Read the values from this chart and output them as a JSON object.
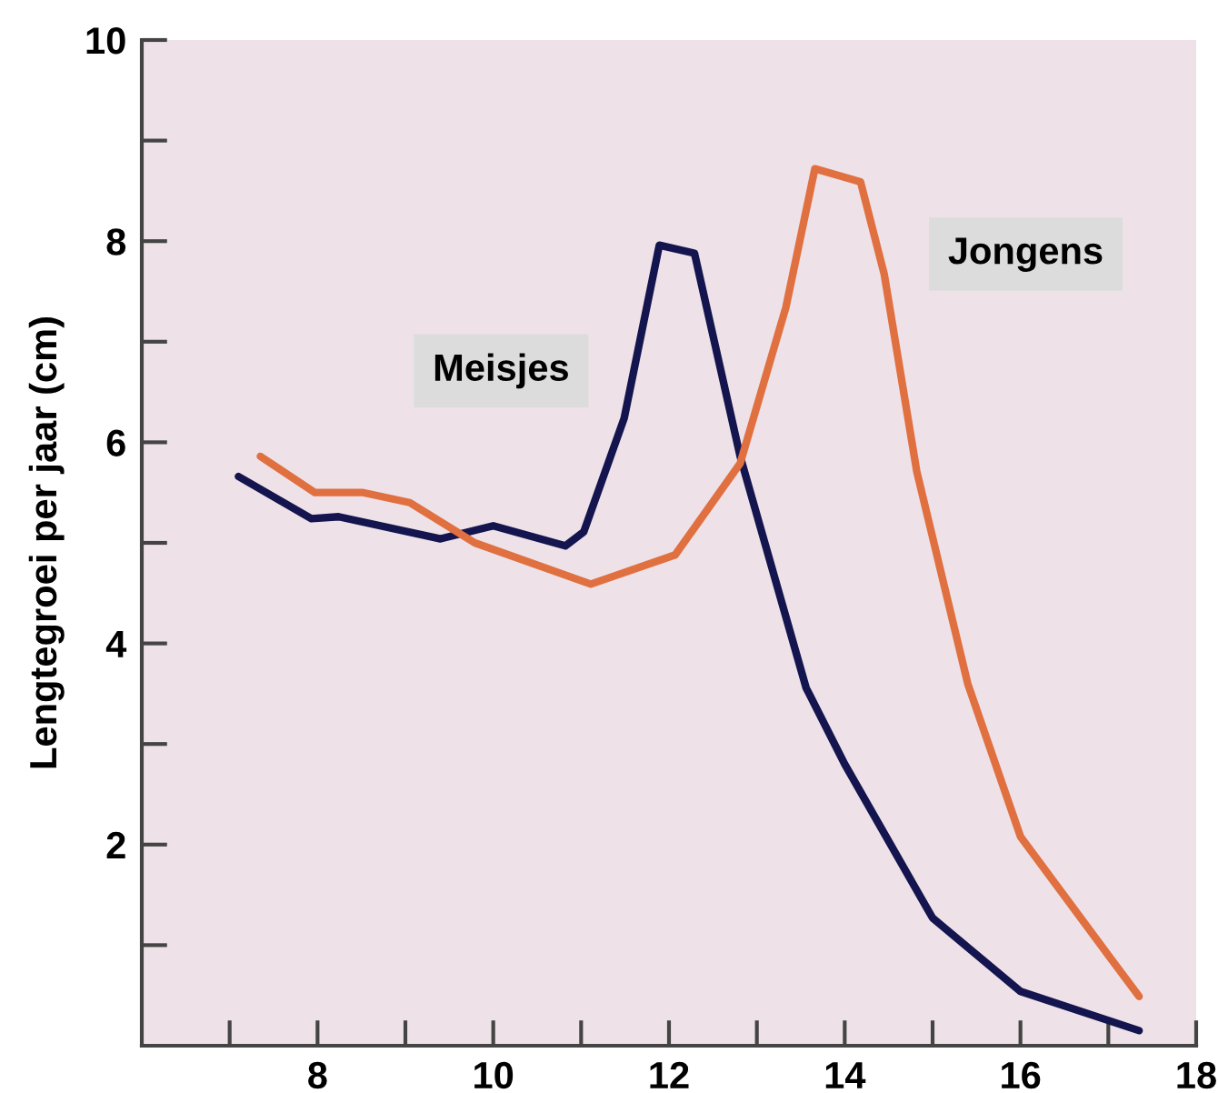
{
  "chart_data": {
    "type": "line",
    "ylabel": "Lengtegroei per jaar (cm)",
    "xlim": [
      6,
      18
    ],
    "ylim": [
      0,
      10
    ],
    "xticks": [
      {
        "value": 7,
        "label": null
      },
      8,
      {
        "value": 9,
        "label": null
      },
      10,
      {
        "value": 11,
        "label": null
      },
      12,
      {
        "value": 13,
        "label": null
      },
      14,
      {
        "value": 15,
        "label": null
      },
      16,
      {
        "value": 17,
        "label": null
      },
      18
    ],
    "yticks": [
      {
        "value": 1,
        "label": null
      },
      2,
      {
        "value": 3,
        "label": null
      },
      4,
      {
        "value": 5,
        "label": null
      },
      6,
      {
        "value": 7,
        "label": null
      },
      8,
      {
        "value": 9,
        "label": null
      },
      10
    ],
    "grid": false,
    "legend": false,
    "marker": "none",
    "line_style": "solid",
    "series": [
      {
        "name": "Meisjes",
        "color": "#14144f",
        "x": [
          7.1,
          7.93,
          8.24,
          9.4,
          10.0,
          10.82,
          11.03,
          11.49,
          11.89,
          12.29,
          12.81,
          13.56,
          14.0,
          15.0,
          16.0,
          17.35
        ],
        "values": [
          5.66,
          5.24,
          5.26,
          5.04,
          5.17,
          4.97,
          5.11,
          6.24,
          7.96,
          7.88,
          5.86,
          3.56,
          2.8,
          1.27,
          0.54,
          0.15
        ]
      },
      {
        "name": "Jongens",
        "color": "#e07040",
        "x": [
          7.35,
          7.97,
          8.52,
          9.05,
          9.79,
          11.11,
          12.07,
          12.81,
          13.33,
          13.66,
          14.18,
          14.45,
          14.82,
          15.4,
          16.0,
          17.0,
          17.35
        ],
        "values": [
          5.86,
          5.5,
          5.5,
          5.4,
          5.0,
          4.59,
          4.88,
          5.79,
          7.34,
          8.72,
          8.59,
          7.67,
          5.71,
          3.6,
          2.08,
          0.9,
          0.49
        ]
      }
    ]
  }
}
